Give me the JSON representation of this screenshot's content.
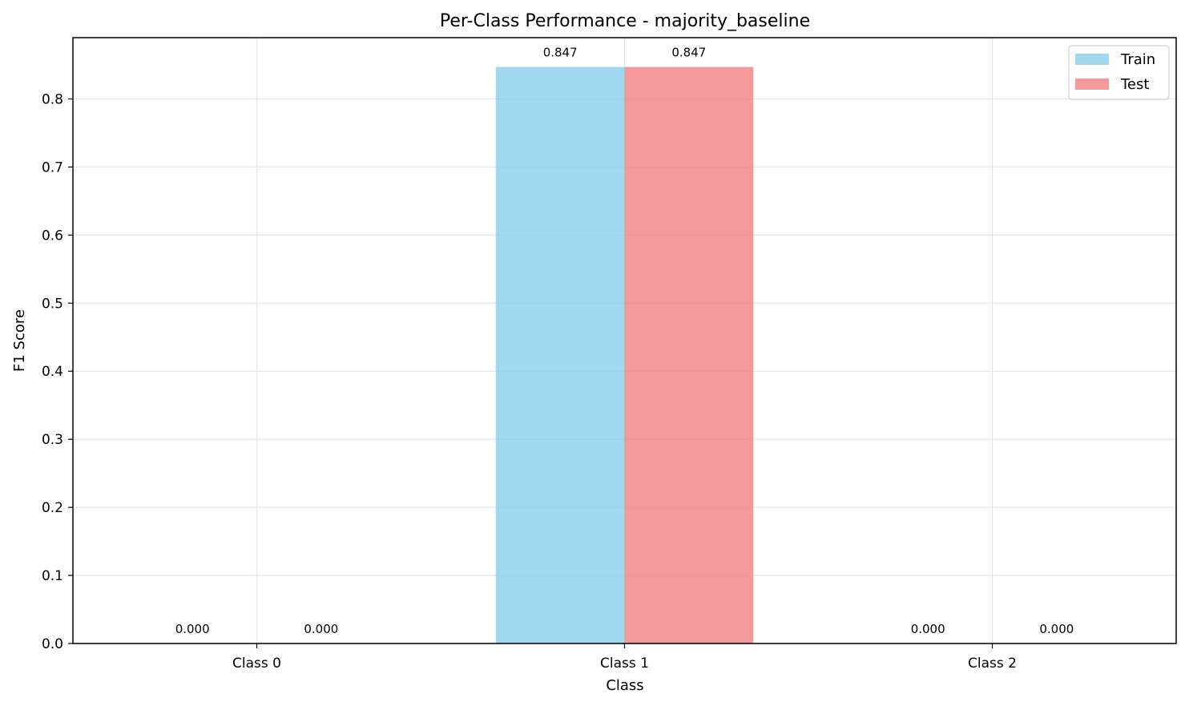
{
  "chart_data": {
    "type": "bar",
    "title": "Per-Class Performance - majority_baseline",
    "xlabel": "Class",
    "ylabel": "F1 Score",
    "categories": [
      "Class 0",
      "Class 1",
      "Class 2"
    ],
    "series": [
      {
        "name": "Train",
        "values": [
          0.0,
          0.847,
          0.0
        ],
        "labels": [
          "0.000",
          "0.847",
          "0.000"
        ],
        "color": "#87CEEB"
      },
      {
        "name": "Test",
        "values": [
          0.0,
          0.847,
          0.0
        ],
        "labels": [
          "0.000",
          "0.847",
          "0.000"
        ],
        "color": "#F08080"
      }
    ],
    "ylim": [
      0,
      0.89
    ],
    "yticks": [
      0.0,
      0.1,
      0.2,
      0.3,
      0.4,
      0.5,
      0.6,
      0.7,
      0.8
    ],
    "ytick_labels": [
      "0.0",
      "0.1",
      "0.2",
      "0.3",
      "0.4",
      "0.5",
      "0.6",
      "0.7",
      "0.8"
    ],
    "grid": true,
    "legend_position": "top-right"
  }
}
